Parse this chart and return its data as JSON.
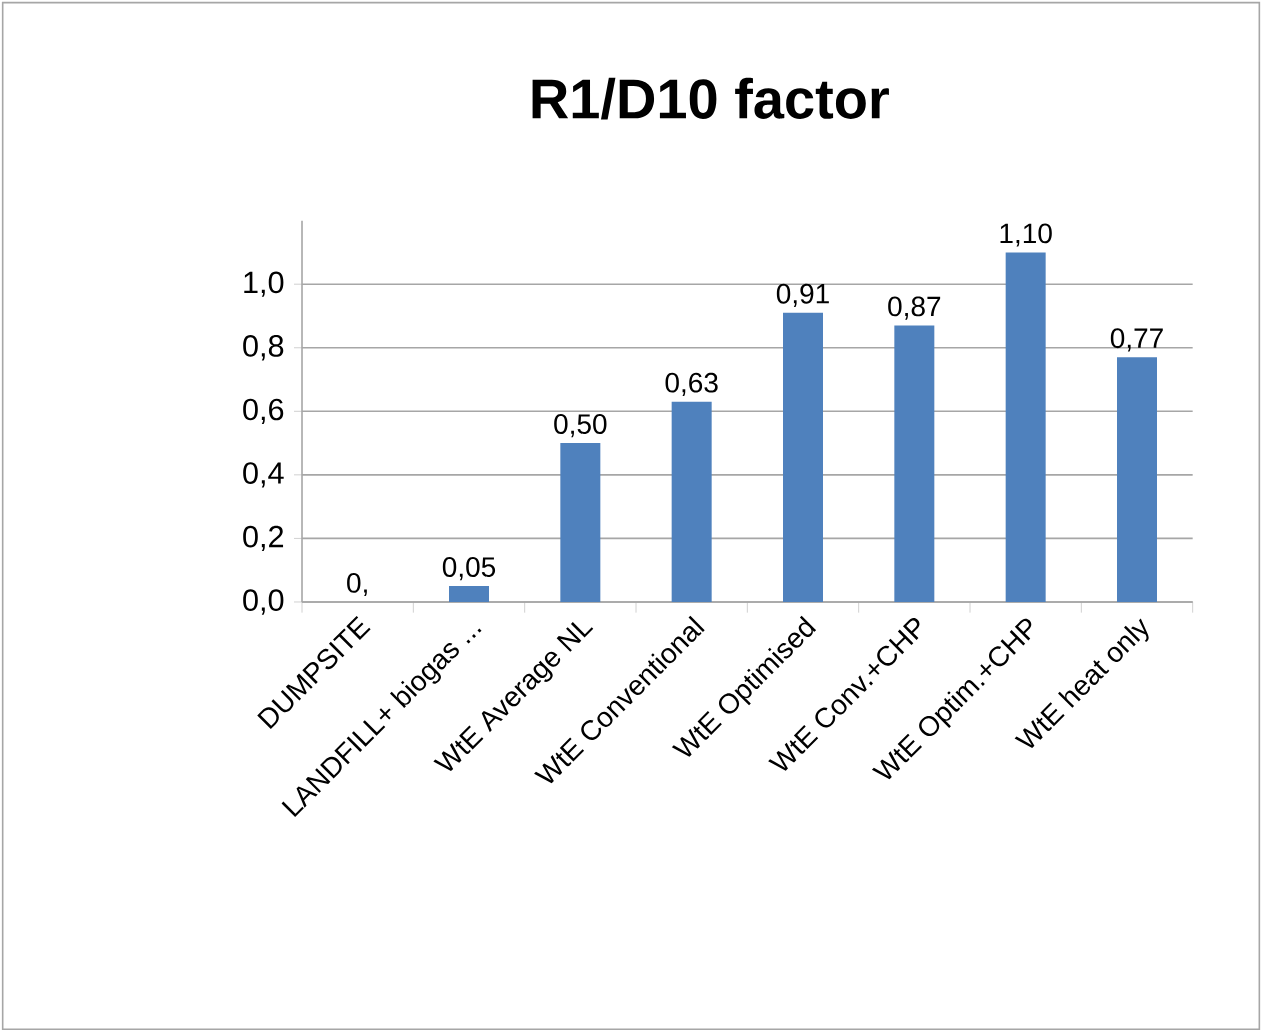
{
  "chart_data": {
    "type": "bar",
    "title": "R1/D10 factor",
    "categories": [
      "DUMPSITE",
      "LANDFILL+ biogas ...",
      "WtE Average NL",
      "WtE Conventional",
      "WtE Optimised",
      "WtE Conv.+CHP",
      "WtE Optim.+CHP",
      "WtE heat only"
    ],
    "values": [
      0,
      0.05,
      0.5,
      0.63,
      0.91,
      0.87,
      1.1,
      0.77
    ],
    "value_labels": [
      "0,",
      "0,05",
      "0,50",
      "0,63",
      "0,91",
      "0,87",
      "1,10",
      "0,77"
    ],
    "color": "#4f81bd",
    "ylim": [
      0,
      1.2
    ],
    "yticks": [
      {
        "value": 0,
        "label": "0,0"
      },
      {
        "value": 0.2,
        "label": "0,2"
      },
      {
        "value": 0.4,
        "label": "0,4"
      },
      {
        "value": 0.6,
        "label": "0,6"
      },
      {
        "value": 0.8,
        "label": "0,8"
      },
      {
        "value": 1.0,
        "label": "1,0"
      }
    ],
    "grid": "y"
  }
}
